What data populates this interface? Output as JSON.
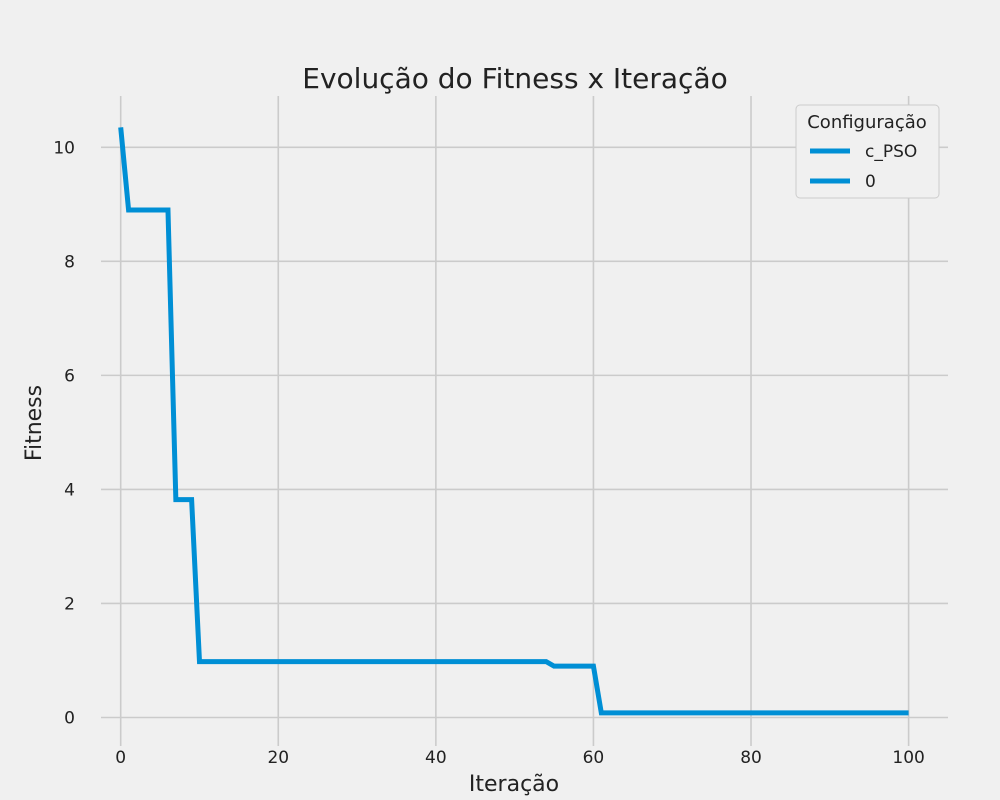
{
  "chart_data": {
    "type": "line",
    "title": "Evolução do Fitness x Iteração",
    "xlabel": "Iteração",
    "ylabel": "Fitness",
    "xlim": [
      -2.5,
      105
    ],
    "ylim": [
      -0.5,
      10.9
    ],
    "xticks": [
      0,
      20,
      40,
      60,
      80,
      100
    ],
    "yticks": [
      0,
      2,
      4,
      6,
      8,
      10
    ],
    "grid": true,
    "legend": {
      "title": "Configuração",
      "placement": "top-right",
      "entries": [
        "c_PSO",
        "0"
      ]
    },
    "series": [
      {
        "name": "0",
        "color": "#008fd5",
        "points": [
          [
            0,
            10.35
          ],
          [
            1,
            8.9
          ],
          [
            6,
            8.9
          ],
          [
            7,
            3.82
          ],
          [
            9,
            3.82
          ],
          [
            10,
            0.98
          ],
          [
            54,
            0.98
          ],
          [
            55,
            0.9
          ],
          [
            60,
            0.9
          ],
          [
            61,
            0.08
          ],
          [
            100,
            0.08
          ]
        ]
      }
    ]
  }
}
